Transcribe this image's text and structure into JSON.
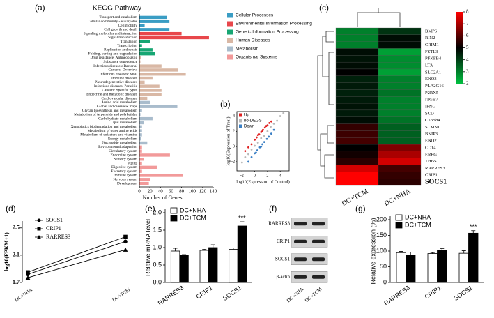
{
  "chart_data": [
    {
      "type": "hbar",
      "panel": "(a)",
      "title": "KEGG Pathway",
      "xlabel": "Number of Genes",
      "categories": [
        "Transport and catabolism",
        "Cellular community - eukaryotes",
        "Cell motility",
        "Cell growth and death",
        "Signaling molecules and interaction",
        "Signal transduction",
        "Translation",
        "Transcription",
        "Replication and repair",
        "Folding, sorting and degradation",
        "Drug resistance: Antineoplastic",
        "Substance dependence",
        "Infectious diseases: Bacterial",
        "Cancers: Overview",
        "Infectious diseases: Viral",
        "Immune diseases",
        "Neurodegenerative diseases",
        "Infectious diseases: Parasitic",
        "Cancers: Specific types",
        "Endocrine and metabolic diseases",
        "Cardiovascular diseases",
        "Amino acid metabolism",
        "Global and overview maps",
        "Glycan biosynthesis and metabolism",
        "Metabolism of terpenoids and polyketides",
        "Carbohydrate metabolism",
        "Lipid metabolism",
        "Xenobiotics biodegradation and metabolism",
        "Metabolism of other amino acids",
        "Metabolism of cofactors and vitamins",
        "Energy metabolism",
        "Nucleotide metabolism",
        "Environmental adaptation",
        "Circulatory system",
        "Endocrine system",
        "Sensory system",
        "Aging",
        "Digestive system",
        "Excretory system",
        "Immune system",
        "Nervous system",
        "Development"
      ],
      "values": [
        52,
        57,
        10,
        57,
        80,
        132,
        20,
        5,
        25,
        30,
        3,
        2,
        42,
        73,
        88,
        25,
        10,
        38,
        42,
        42,
        15,
        20,
        72,
        5,
        2,
        25,
        8,
        5,
        5,
        5,
        3,
        15,
        5,
        5,
        58,
        8,
        5,
        33,
        5,
        83,
        20,
        18
      ],
      "colors": [
        "#3a9dc4",
        "#3a9dc4",
        "#3a9dc4",
        "#3a9dc4",
        "#e8474b",
        "#e8474b",
        "#17a673",
        "#17a673",
        "#17a673",
        "#17a673",
        "#d9b8a5",
        "#d9b8a5",
        "#d9b8a5",
        "#d9b8a5",
        "#d9b8a5",
        "#d9b8a5",
        "#d9b8a5",
        "#d9b8a5",
        "#d9b8a5",
        "#d9b8a5",
        "#d9b8a5",
        "#a9bccc",
        "#a9bccc",
        "#a9bccc",
        "#a9bccc",
        "#a9bccc",
        "#a9bccc",
        "#a9bccc",
        "#a9bccc",
        "#a9bccc",
        "#a9bccc",
        "#a9bccc",
        "#f29a9a",
        "#f29a9a",
        "#f29a9a",
        "#f29a9a",
        "#f29a9a",
        "#f29a9a",
        "#f29a9a",
        "#f29a9a",
        "#f29a9a",
        "#f29a9a"
      ],
      "xlim": [
        0,
        140
      ],
      "xticks": [
        0,
        20,
        40,
        60,
        80,
        100,
        120,
        140
      ],
      "legend": [
        {
          "name": "Cellular Processes",
          "color": "#3a9dc4"
        },
        {
          "name": "Environmental Information Processing",
          "color": "#e8474b"
        },
        {
          "name": "Genetic Information Processing",
          "color": "#17a673"
        },
        {
          "name": "Human Diseases",
          "color": "#d9b8a5"
        },
        {
          "name": "Metabolism",
          "color": "#a9bccc"
        },
        {
          "name": "Organismal Systems",
          "color": "#f29a9a"
        }
      ]
    },
    {
      "type": "scatter",
      "panel": "(b)",
      "xlabel": "log10(Expression of Control)",
      "ylabel": "log10(Expression of Treat)",
      "xlim": [
        -2.8,
        5.4
      ],
      "ylim": [
        -3.2,
        4.6
      ],
      "xticks": [
        -2,
        0,
        2,
        4
      ],
      "yticks": [
        -2,
        0,
        2,
        4
      ],
      "legend_corner": "upper left",
      "series": [
        {
          "name": "Up",
          "color": "#e02020",
          "x": [
            -1.5,
            -1,
            -0.5,
            0,
            0.3,
            0.7,
            1,
            1.3,
            1.6,
            2,
            2.3,
            2.6,
            0.5,
            1.2,
            1.8
          ],
          "y": [
            -0.6,
            -0.1,
            0.3,
            0.9,
            1.2,
            1.6,
            1.9,
            2.2,
            2.5,
            2.8,
            3.1,
            3.3,
            1.5,
            2.0,
            2.7
          ]
        },
        {
          "name": "no-DEGS",
          "color": "#b8b8b8",
          "x": [
            -2,
            -1.5,
            -1,
            -0.5,
            0,
            0.5,
            1,
            1.5,
            2,
            2.5,
            3,
            3.5,
            4,
            4.5
          ],
          "y": [
            -2.1,
            -1.4,
            -1,
            -0.4,
            0.1,
            0.5,
            1.1,
            1.4,
            2,
            2.6,
            3,
            3.4,
            4,
            4.4
          ]
        },
        {
          "name": "Down",
          "color": "#3a7fc4",
          "x": [
            -1,
            -0.5,
            0,
            0.4,
            0.8,
            1.2,
            1.5,
            1.9,
            2.2,
            2.6,
            3,
            0.2,
            1
          ],
          "y": [
            -2,
            -1.4,
            -0.9,
            -0.5,
            -0.1,
            0.3,
            0.6,
            1,
            1.3,
            1.7,
            2.2,
            -0.8,
            0
          ]
        }
      ]
    },
    {
      "type": "heatmap",
      "panel": "(c)",
      "columns": [
        "DC+TCM",
        "DC+NHA"
      ],
      "rows": [
        "BMP6",
        "RIN2",
        "CRIM1",
        "FSTL3",
        "PFKFB4",
        "LTA",
        "SLC2A1",
        "ENO3",
        "PLA2G16",
        "P2RX5",
        "ITGB7",
        "IFNG",
        "SCD",
        "C1orf84",
        "STMN1",
        "BNIP3",
        "ENO2",
        "CD14",
        "EREG",
        "THBS1",
        "RARRES3",
        "CRIP1",
        "SOCS1"
      ],
      "values": [
        [
          3,
          4.2
        ],
        [
          3,
          4.8
        ],
        [
          3,
          4.8
        ],
        [
          4.8,
          2.5
        ],
        [
          4.7,
          2.8
        ],
        [
          4.8,
          2.8
        ],
        [
          5,
          2.5
        ],
        [
          4.5,
          3
        ],
        [
          4.6,
          3
        ],
        [
          4.5,
          3.2
        ],
        [
          4.6,
          3
        ],
        [
          4.7,
          3
        ],
        [
          4.6,
          3
        ],
        [
          4.8,
          3.2
        ],
        [
          5.6,
          3.5
        ],
        [
          5.7,
          3.5
        ],
        [
          5.8,
          3.5
        ],
        [
          5,
          6.5
        ],
        [
          5.2,
          7
        ],
        [
          5.5,
          7.5
        ],
        [
          7.5,
          5.8
        ],
        [
          8,
          5.6
        ],
        [
          8,
          5.5
        ]
      ],
      "clim": [
        2,
        8
      ],
      "cticks": [
        2,
        3,
        4,
        5,
        6,
        7,
        8
      ],
      "colormap": [
        "#00c040",
        "#000000",
        "#ff0000"
      ],
      "highlight": "SOCS1",
      "highlight_color": "#ff0000"
    },
    {
      "type": "line",
      "panel": "(d)",
      "ylabel": "log10(FPKM+1)",
      "categories": [
        "DC+NHA",
        "DC+TCM"
      ],
      "ylim": [
        1.7,
        2.6
      ],
      "yticks": [
        1.7,
        2.1,
        2.5
      ],
      "series": [
        {
          "name": "SOCS1",
          "marker": "circle",
          "color": "#000000",
          "values": [
            1.82,
            2.3
          ]
        },
        {
          "name": "CRIP1",
          "marker": "square",
          "color": "#000000",
          "values": [
            1.85,
            2.37
          ]
        },
        {
          "name": "RARRES3",
          "marker": "triangle",
          "color": "#000000",
          "values": [
            1.77,
            2.18
          ]
        }
      ]
    },
    {
      "type": "groupedbar",
      "panel": "(e)",
      "ylabel": "Relative mRNA level",
      "categories": [
        "RARRES3",
        "CRIP1",
        "SOCS1"
      ],
      "ylim": [
        0,
        2
      ],
      "yticks": [
        {
          "value": 0,
          "label": "0.0"
        },
        0.5,
        {
          "value": 1,
          "label": "1.0"
        },
        1.5,
        {
          "value": 2,
          "label": "2.0"
        }
      ],
      "annotation": "***",
      "series": [
        {
          "name": "DC+NHA",
          "color": "#ffffff",
          "values": [
            0.9,
            0.92,
            0.95
          ],
          "errors": [
            0.08,
            0.03,
            0.04
          ]
        },
        {
          "name": "DC+TCM",
          "color": "#000000",
          "values": [
            0.78,
            1.0,
            1.62
          ],
          "errors": [
            0.02,
            0.08,
            0.12
          ]
        }
      ]
    },
    {
      "type": "blot",
      "panel": "(f)",
      "rows": [
        "RARRES3",
        "CRIP1",
        "SOCS1",
        "β-actin"
      ],
      "columns": [
        "DC+NHA",
        "DC+TCM"
      ]
    },
    {
      "type": "groupedbar",
      "panel": "(g)",
      "ylabel": "Relative expression (%)",
      "categories": [
        "RARRES3",
        "CRIP1",
        "SOCS1"
      ],
      "ylim": [
        0,
        200
      ],
      "yticks": [
        0,
        50,
        100,
        150,
        200
      ],
      "annotation": "***",
      "series": [
        {
          "name": "DC+NHA",
          "color": "#ffffff",
          "values": [
            95,
            92,
            93
          ],
          "errors": [
            4,
            3,
            8
          ]
        },
        {
          "name": "DC+TCM",
          "color": "#000000",
          "values": [
            87,
            103,
            157
          ],
          "errors": [
            10,
            5,
            8
          ]
        }
      ]
    }
  ]
}
